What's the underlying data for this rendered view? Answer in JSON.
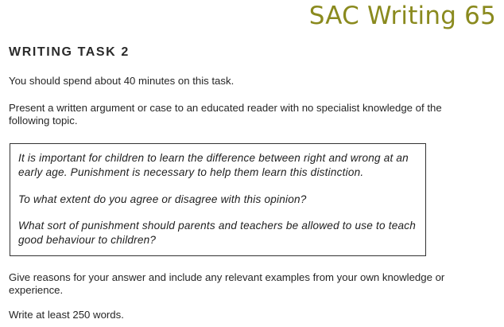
{
  "header": {
    "label": "SAC Writing 65"
  },
  "task": {
    "heading": "WRITING TASK 2",
    "time_instruction": "You should spend about 40 minutes on this task.",
    "instruction": "Present a written argument or case to an educated reader with no specialist knowledge of the following topic.",
    "topic": {
      "statement": "It is important for children to learn the difference between right and wrong at an early age. Punishment is necessary to help them learn this distinction.",
      "question_1": "To what extent do you agree or disagree with this opinion?",
      "question_2": "What sort of punishment should parents and teachers be allowed to use to teach good behaviour to children?"
    },
    "reasons_instruction": "Give reasons for your answer and include any relevant examples from your own knowledge or experience.",
    "word_count_instruction": "Write at least 250 words."
  },
  "colors": {
    "label": "#8a8a1e",
    "text": "#262626",
    "border": "#333333"
  }
}
